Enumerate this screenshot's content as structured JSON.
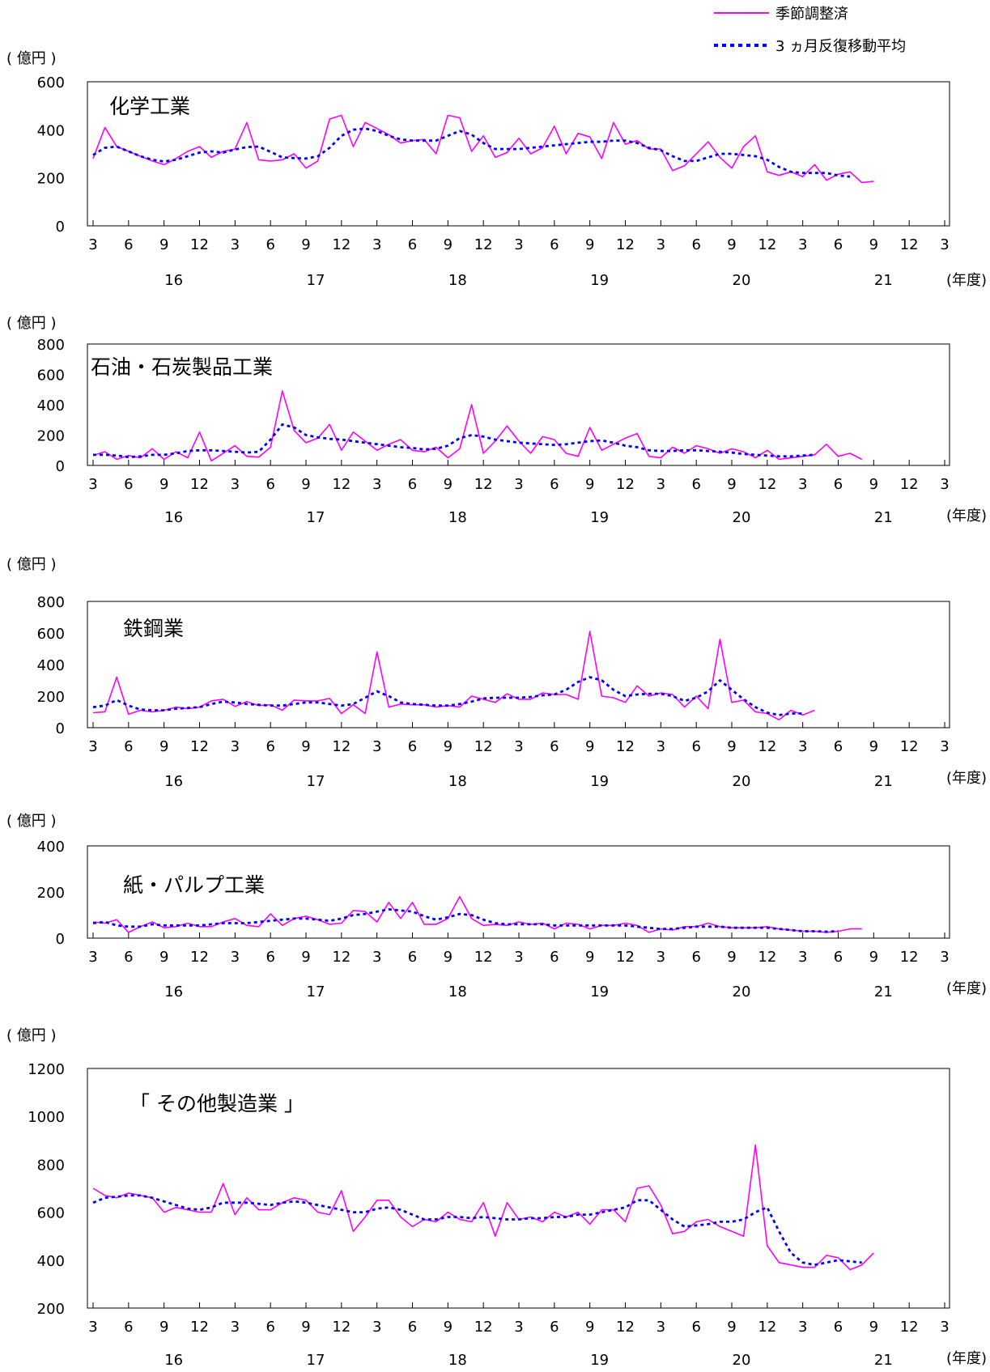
{
  "legend": {
    "items": [
      {
        "label": "季節調整済",
        "color": "#ff00ff",
        "style": "solid"
      },
      {
        "label": "3 ヵ月反復移動平均",
        "color": "#0000ff",
        "style": "dotted"
      }
    ]
  },
  "x_axis": {
    "tick_labels": [
      "3",
      "6",
      "9",
      "12",
      "3",
      "6",
      "9",
      "12",
      "3",
      "6",
      "9",
      "12",
      "3",
      "6",
      "9",
      "12",
      "3",
      "6",
      "9",
      "12",
      "3",
      "6",
      "9",
      "12",
      "3"
    ],
    "year_labels": [
      "16",
      "17",
      "18",
      "19",
      "20",
      "21"
    ],
    "unit_label": "(年度)"
  },
  "chart_data": [
    {
      "type": "line",
      "title": "化学工業",
      "ylabel": "( 億円 )",
      "ylim": [
        0,
        600
      ],
      "yticks": [
        0,
        200,
        400,
        600
      ],
      "x_start": "2016-03",
      "series": [
        {
          "name": "季節調整済",
          "color": "#ff00ff",
          "values": [
            280,
            410,
            330,
            310,
            290,
            270,
            255,
            280,
            310,
            330,
            285,
            310,
            320,
            430,
            275,
            270,
            275,
            300,
            240,
            270,
            445,
            460,
            330,
            430,
            405,
            380,
            345,
            355,
            360,
            300,
            460,
            450,
            310,
            375,
            285,
            305,
            365,
            300,
            325,
            415,
            300,
            385,
            370,
            280,
            430,
            340,
            355,
            320,
            320,
            230,
            250,
            300,
            350,
            285,
            240,
            330,
            375,
            225,
            210,
            225,
            205,
            255,
            190,
            215,
            225,
            180,
            185
          ]
        },
        {
          "name": "3 ヵ月反復移動平均",
          "color": "#0000ff",
          "values": [
            295,
            325,
            330,
            310,
            290,
            275,
            268,
            275,
            290,
            305,
            310,
            305,
            318,
            328,
            330,
            308,
            285,
            282,
            280,
            290,
            325,
            375,
            400,
            405,
            395,
            375,
            360,
            355,
            355,
            355,
            375,
            395,
            380,
            345,
            320,
            320,
            320,
            325,
            330,
            335,
            340,
            345,
            350,
            350,
            355,
            355,
            345,
            325,
            315,
            290,
            270,
            270,
            285,
            300,
            300,
            295,
            290,
            275,
            245,
            225,
            220,
            220,
            220,
            210,
            205
          ]
        }
      ]
    },
    {
      "type": "line",
      "title": "石油・石炭製品工業",
      "ylabel": "( 億円 )",
      "ylim": [
        0,
        800
      ],
      "yticks": [
        0,
        200,
        400,
        600,
        800
      ],
      "x_start": "2016-03",
      "series": [
        {
          "name": "季節調整済",
          "color": "#ff00ff",
          "values": [
            65,
            90,
            40,
            65,
            50,
            110,
            40,
            90,
            50,
            220,
            30,
            80,
            130,
            60,
            55,
            120,
            490,
            230,
            150,
            180,
            270,
            100,
            220,
            160,
            100,
            140,
            170,
            100,
            90,
            120,
            50,
            110,
            400,
            80,
            160,
            260,
            160,
            80,
            190,
            170,
            80,
            60,
            250,
            100,
            140,
            180,
            210,
            60,
            50,
            120,
            80,
            130,
            110,
            80,
            110,
            90,
            50,
            100,
            40,
            50,
            60,
            70,
            140,
            60,
            80,
            40
          ]
        },
        {
          "name": "3 ヵ月反復移動平均",
          "color": "#0000ff",
          "values": [
            70,
            70,
            65,
            55,
            60,
            70,
            70,
            80,
            95,
            100,
            100,
            95,
            90,
            85,
            90,
            170,
            270,
            250,
            200,
            185,
            175,
            170,
            160,
            150,
            140,
            130,
            120,
            115,
            105,
            110,
            130,
            180,
            200,
            190,
            170,
            160,
            150,
            145,
            140,
            135,
            140,
            150,
            160,
            165,
            150,
            130,
            120,
            100,
            95,
            95,
            100,
            100,
            95,
            90,
            85,
            75,
            70,
            65,
            60,
            60,
            65,
            70
          ]
        }
      ]
    },
    {
      "type": "line",
      "title": "鉄鋼業",
      "ylabel": "( 億円 )",
      "ylim": [
        0,
        800
      ],
      "yticks": [
        0,
        200,
        400,
        600,
        800
      ],
      "x_start": "2016-03",
      "series": [
        {
          "name": "季節調整済",
          "color": "#ff00ff",
          "values": [
            95,
            100,
            320,
            85,
            110,
            100,
            110,
            130,
            120,
            130,
            170,
            180,
            135,
            165,
            140,
            145,
            110,
            175,
            170,
            170,
            185,
            90,
            145,
            90,
            480,
            130,
            150,
            145,
            145,
            130,
            140,
            130,
            200,
            180,
            160,
            215,
            180,
            180,
            220,
            210,
            210,
            180,
            610,
            200,
            190,
            160,
            265,
            200,
            220,
            210,
            130,
            200,
            120,
            560,
            160,
            175,
            100,
            90,
            50,
            110,
            80,
            110
          ]
        },
        {
          "name": "3 ヵ月反復移動平均",
          "color": "#0000ff",
          "values": [
            130,
            140,
            175,
            140,
            115,
            110,
            110,
            120,
            125,
            130,
            150,
            165,
            160,
            150,
            145,
            140,
            140,
            150,
            160,
            160,
            150,
            140,
            150,
            190,
            230,
            200,
            160,
            150,
            145,
            140,
            140,
            150,
            165,
            185,
            190,
            190,
            190,
            195,
            205,
            210,
            240,
            290,
            320,
            300,
            240,
            200,
            210,
            215,
            215,
            200,
            170,
            190,
            230,
            300,
            240,
            180,
            130,
            95,
            80,
            90,
            90
          ]
        }
      ]
    },
    {
      "type": "line",
      "title": "紙・パルプ工業",
      "ylabel": "( 億円 )",
      "ylim": [
        0,
        400
      ],
      "yticks": [
        0,
        200,
        400
      ],
      "x_start": "2016-03",
      "series": [
        {
          "name": "季節調整済",
          "color": "#ff00ff",
          "values": [
            70,
            65,
            80,
            25,
            50,
            70,
            45,
            50,
            65,
            50,
            50,
            70,
            85,
            55,
            50,
            105,
            55,
            85,
            95,
            80,
            60,
            65,
            120,
            115,
            70,
            155,
            85,
            155,
            60,
            60,
            85,
            180,
            85,
            55,
            60,
            55,
            70,
            60,
            65,
            40,
            65,
            60,
            40,
            55,
            55,
            65,
            55,
            25,
            40,
            35,
            50,
            50,
            65,
            50,
            45,
            45,
            45,
            50,
            40,
            35,
            30,
            30,
            25,
            30,
            40,
            40
          ]
        },
        {
          "name": "3 ヵ月反復移動平均",
          "color": "#0000ff",
          "values": [
            65,
            70,
            55,
            50,
            50,
            60,
            55,
            55,
            55,
            55,
            60,
            65,
            65,
            65,
            70,
            75,
            80,
            85,
            85,
            80,
            75,
            85,
            100,
            105,
            115,
            125,
            120,
            115,
            95,
            80,
            90,
            105,
            100,
            80,
            65,
            60,
            60,
            60,
            60,
            55,
            55,
            55,
            55,
            55,
            55,
            55,
            50,
            45,
            40,
            40,
            45,
            50,
            50,
            50,
            45,
            45,
            45,
            45,
            40,
            35,
            30,
            30,
            28,
            30
          ]
        }
      ]
    },
    {
      "type": "line",
      "title": "「 その他製造業 」",
      "ylabel": "( 億円 )",
      "ylim": [
        200,
        1200
      ],
      "yticks": [
        200,
        400,
        600,
        800,
        1000,
        1200
      ],
      "x_start": "2016-03",
      "series": [
        {
          "name": "季節調整済",
          "color": "#ff00ff",
          "values": [
            700,
            670,
            660,
            680,
            670,
            660,
            600,
            620,
            610,
            600,
            600,
            720,
            590,
            660,
            610,
            610,
            640,
            660,
            650,
            600,
            590,
            690,
            520,
            580,
            650,
            650,
            580,
            540,
            570,
            560,
            600,
            570,
            560,
            640,
            500,
            640,
            570,
            580,
            560,
            600,
            580,
            600,
            550,
            610,
            610,
            560,
            700,
            710,
            630,
            510,
            520,
            560,
            570,
            540,
            520,
            500,
            880,
            460,
            390,
            380,
            370,
            370,
            420,
            410,
            360,
            380,
            430
          ]
        },
        {
          "name": "3 ヵ月反復移動平均",
          "color": "#0000ff",
          "values": [
            640,
            660,
            665,
            670,
            670,
            660,
            645,
            630,
            615,
            610,
            620,
            640,
            640,
            640,
            635,
            630,
            640,
            645,
            640,
            630,
            620,
            610,
            600,
            600,
            615,
            620,
            610,
            590,
            570,
            570,
            580,
            580,
            575,
            580,
            575,
            570,
            570,
            575,
            575,
            580,
            580,
            590,
            590,
            600,
            610,
            620,
            650,
            650,
            610,
            570,
            540,
            545,
            550,
            560,
            560,
            570,
            600,
            620,
            520,
            430,
            390,
            380,
            390,
            400,
            395,
            390
          ]
        }
      ]
    }
  ]
}
